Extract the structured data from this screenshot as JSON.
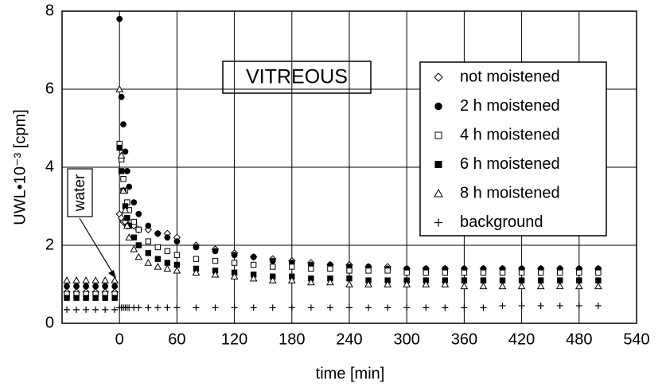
{
  "chart_data": {
    "type": "scatter",
    "title": "VITREOUS",
    "xlabel": "time [min]",
    "ylabel": "UWL•10⁻³ [cpm]",
    "annotation": "water",
    "xlim": [
      -60,
      540
    ],
    "xticks": [
      0,
      60,
      120,
      180,
      240,
      300,
      360,
      420,
      480,
      540
    ],
    "ylim": [
      0,
      8
    ],
    "yticks": [
      0,
      2,
      4,
      6,
      8
    ],
    "grid": true,
    "legend": "upper right",
    "x": [
      -55,
      -45,
      -35,
      -25,
      -15,
      -5,
      0,
      2,
      4,
      6,
      8,
      10,
      15,
      20,
      30,
      40,
      50,
      60,
      80,
      100,
      120,
      140,
      160,
      180,
      200,
      220,
      240,
      260,
      280,
      300,
      320,
      340,
      360,
      380,
      400,
      420,
      440,
      460,
      480,
      500
    ],
    "series": [
      {
        "name": "not moistened",
        "color": "#000000",
        "marker": "diamond-open",
        "values": [
          0.8,
          0.8,
          0.8,
          0.8,
          0.8,
          0.8,
          2.8,
          2.7,
          2.6,
          2.6,
          2.5,
          2.5,
          2.5,
          2.4,
          2.4,
          2.3,
          2.3,
          2.2,
          2.0,
          1.9,
          1.8,
          1.7,
          1.65,
          1.6,
          1.55,
          1.5,
          1.5,
          1.45,
          1.45,
          1.4,
          1.4,
          1.4,
          1.4,
          1.4,
          1.4,
          1.4,
          1.4,
          1.4,
          1.4,
          1.4
        ]
      },
      {
        "name": "2 h moistened",
        "color": "#000000",
        "marker": "circle-filled",
        "values": [
          0.95,
          0.95,
          0.95,
          0.95,
          0.95,
          0.95,
          7.8,
          5.8,
          5.1,
          4.4,
          3.9,
          3.5,
          3.1,
          2.8,
          2.5,
          2.3,
          2.2,
          2.1,
          1.95,
          1.85,
          1.75,
          1.7,
          1.6,
          1.55,
          1.5,
          1.5,
          1.45,
          1.45,
          1.4,
          1.4,
          1.4,
          1.4,
          1.4,
          1.4,
          1.4,
          1.4,
          1.4,
          1.4,
          1.4,
          1.4
        ]
      },
      {
        "name": "4 h moistened",
        "color": "#000000",
        "marker": "square-open",
        "values": [
          0.75,
          0.75,
          0.75,
          0.75,
          0.75,
          0.75,
          4.6,
          4.2,
          3.7,
          3.4,
          3.1,
          2.9,
          2.6,
          2.4,
          2.1,
          1.95,
          1.85,
          1.75,
          1.65,
          1.6,
          1.55,
          1.5,
          1.45,
          1.45,
          1.4,
          1.4,
          1.35,
          1.35,
          1.35,
          1.3,
          1.3,
          1.3,
          1.3,
          1.3,
          1.3,
          1.3,
          1.3,
          1.3,
          1.3,
          1.3
        ]
      },
      {
        "name": "6 h moistened",
        "color": "#000000",
        "marker": "square-filled",
        "values": [
          0.65,
          0.65,
          0.65,
          0.65,
          0.65,
          0.65,
          4.5,
          3.9,
          3.4,
          3.0,
          2.7,
          2.5,
          2.2,
          2.0,
          1.8,
          1.65,
          1.55,
          1.5,
          1.4,
          1.35,
          1.3,
          1.25,
          1.2,
          1.2,
          1.15,
          1.15,
          1.15,
          1.1,
          1.1,
          1.1,
          1.1,
          1.1,
          1.1,
          1.1,
          1.1,
          1.1,
          1.1,
          1.1,
          1.1,
          1.1
        ]
      },
      {
        "name": "8 h moistened",
        "color": "#000000",
        "marker": "triangle-open",
        "values": [
          1.1,
          1.1,
          1.1,
          1.1,
          1.1,
          1.1,
          6.0,
          4.3,
          3.4,
          2.9,
          2.5,
          2.2,
          1.9,
          1.7,
          1.55,
          1.45,
          1.4,
          1.35,
          1.3,
          1.25,
          1.2,
          1.15,
          1.1,
          1.1,
          1.05,
          1.05,
          1.0,
          1.0,
          1.0,
          1.0,
          1.0,
          1.0,
          0.95,
          0.95,
          0.95,
          0.95,
          0.95,
          0.95,
          0.95,
          0.95
        ]
      },
      {
        "name": "background",
        "color": "#000000",
        "marker": "plus",
        "values": [
          0.35,
          0.35,
          0.35,
          0.35,
          0.35,
          0.35,
          0.4,
          0.4,
          0.4,
          0.4,
          0.4,
          0.4,
          0.4,
          0.4,
          0.4,
          0.4,
          0.4,
          0.4,
          0.4,
          0.4,
          0.4,
          0.4,
          0.4,
          0.4,
          0.4,
          0.4,
          0.4,
          0.4,
          0.4,
          0.4,
          0.4,
          0.4,
          0.4,
          0.4,
          0.45,
          0.45,
          0.45,
          0.45,
          0.45,
          0.45
        ]
      }
    ]
  }
}
